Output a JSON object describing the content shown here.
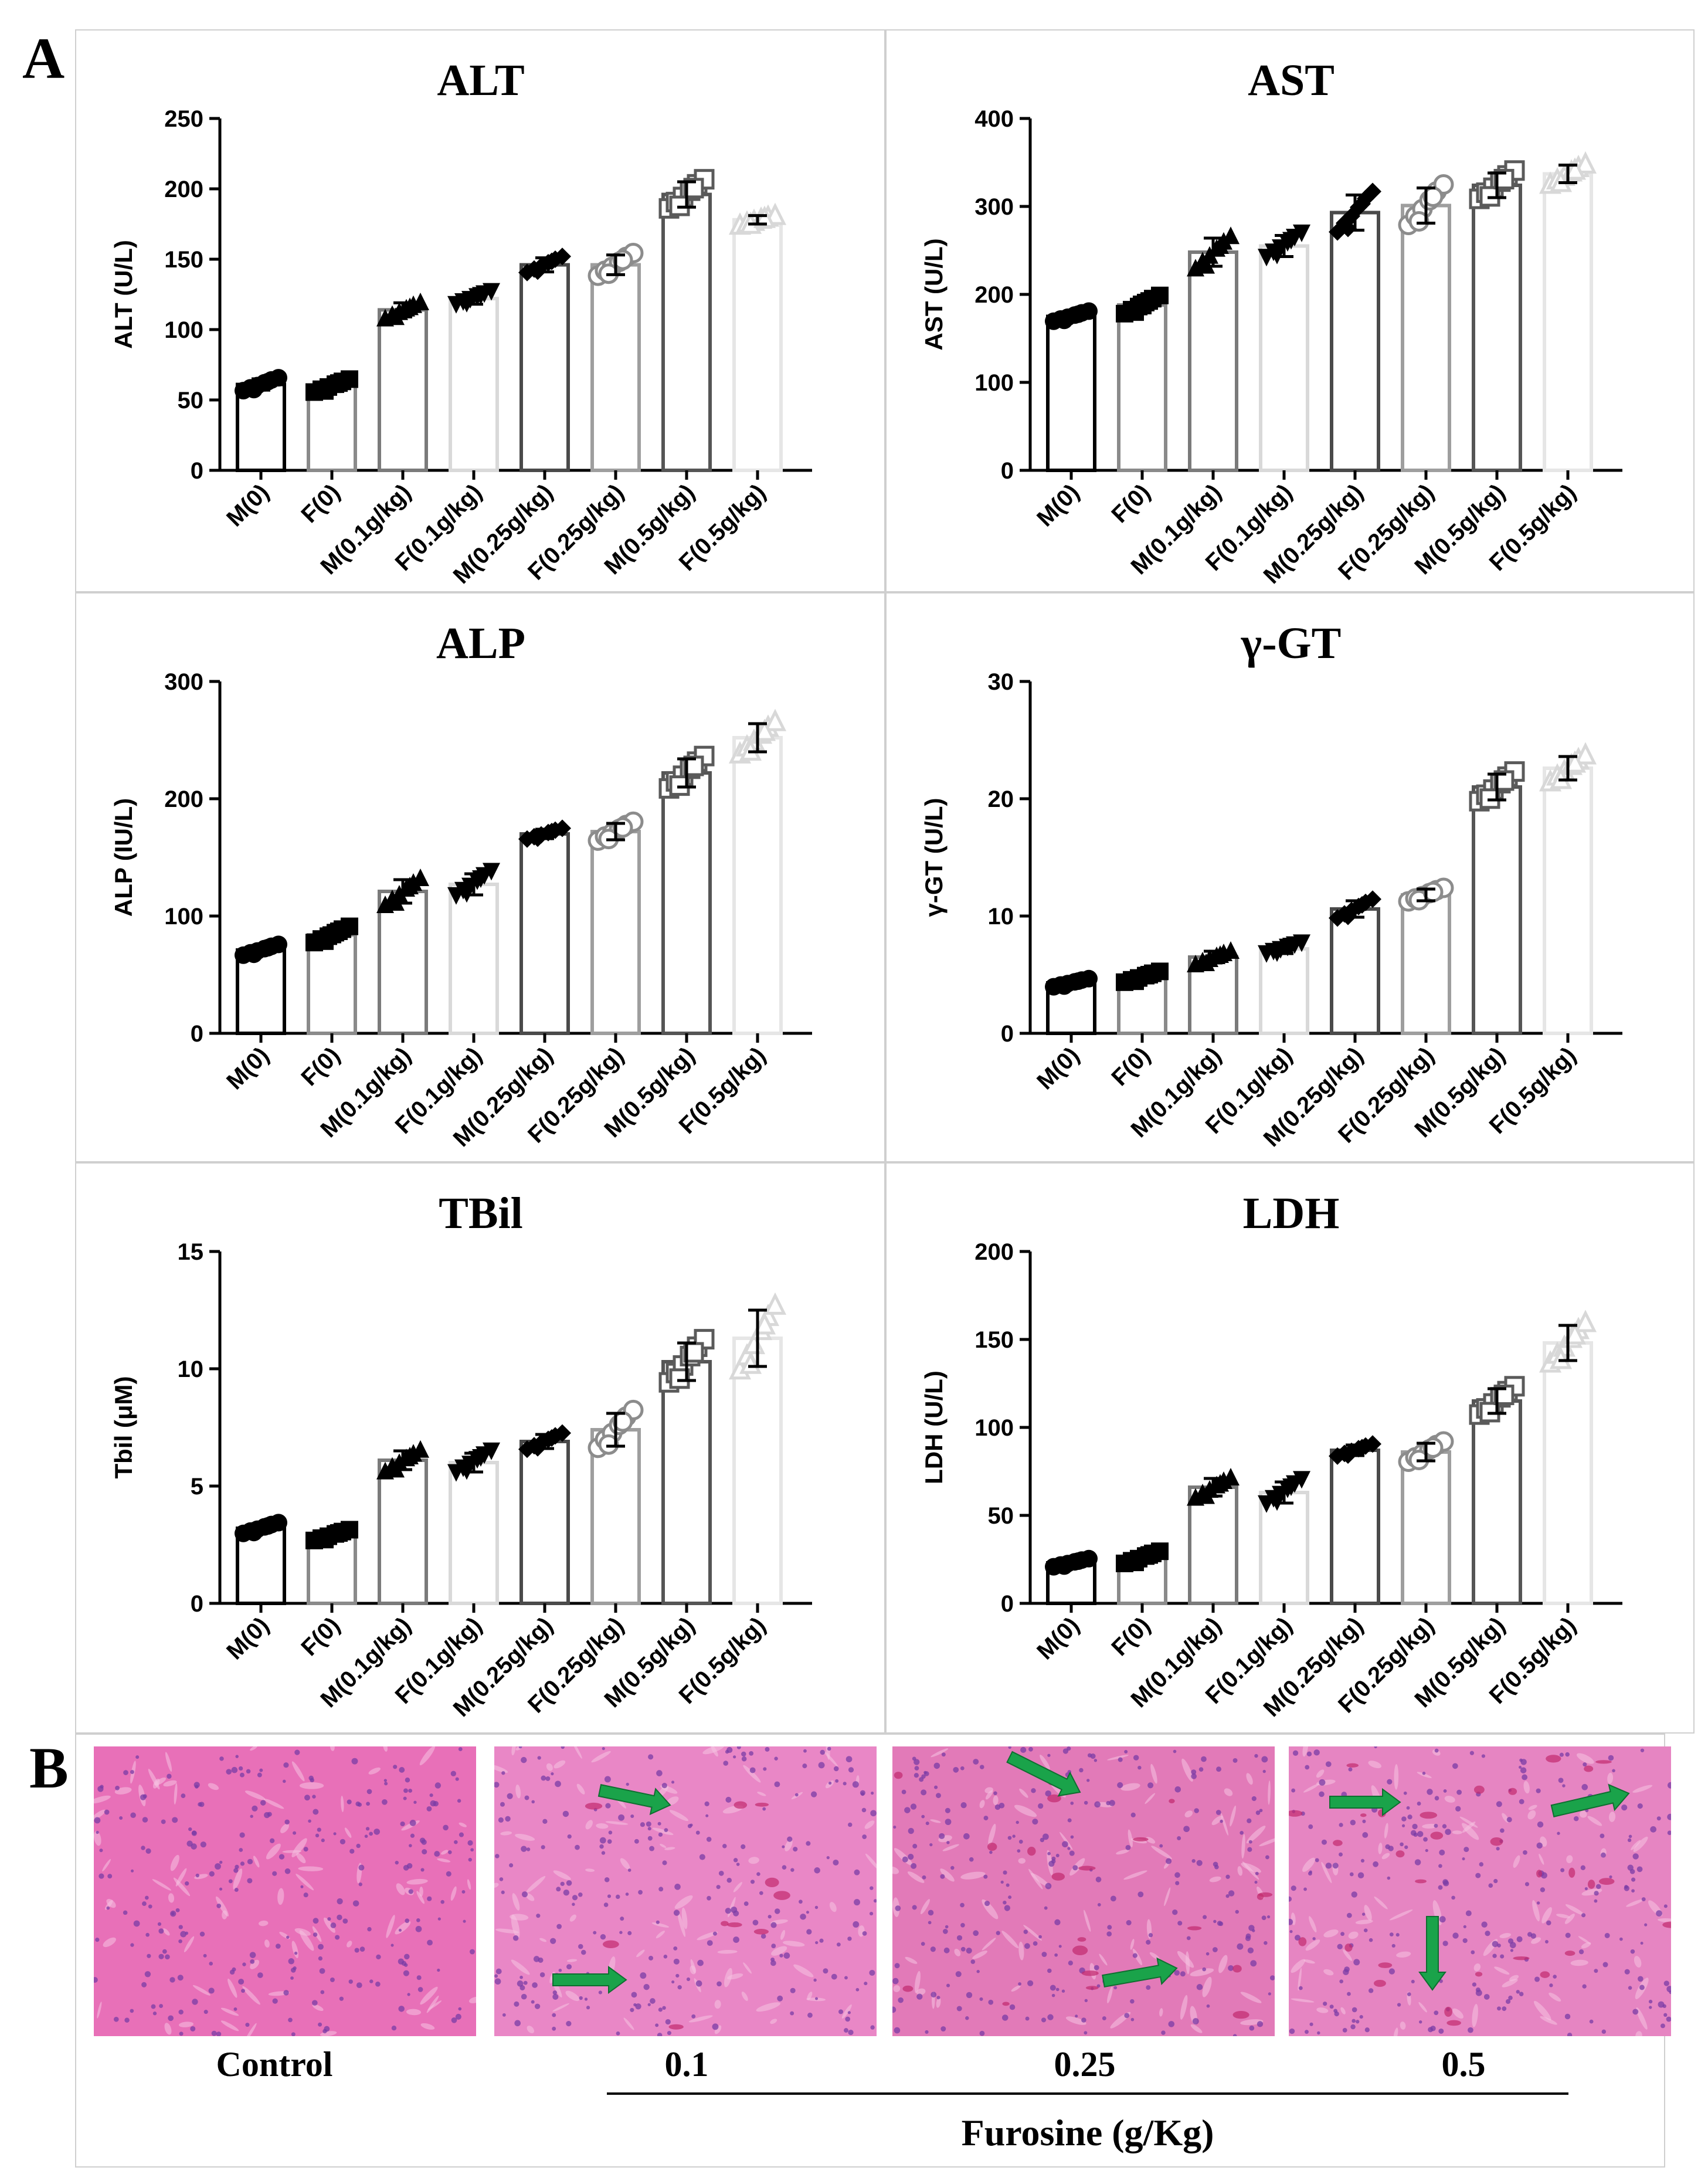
{
  "panel_labels": {
    "a": "A",
    "b": "B"
  },
  "categories": [
    "M(0)",
    "F(0)",
    "M(0.1g/kg)",
    "F(0.1g/kg)",
    "M(0.25g/kg)",
    "F(0.25g/kg)",
    "M(0.5g/kg)",
    "F(0.5g/kg)"
  ],
  "bar_colors": [
    "#000000",
    "#8a8a8a",
    "#7a7a7a",
    "#d9d9d9",
    "#4a4a4a",
    "#9e9e9e",
    "#555555",
    "#e6e6e6"
  ],
  "marker_shapes": [
    "circle",
    "square",
    "triangle-up",
    "triangle-down",
    "diamond",
    "circle-open",
    "square-open",
    "triangle-open"
  ],
  "chart_data": [
    {
      "id": "alt",
      "type": "bar",
      "title": "ALT",
      "ylabel": "ALT (U/L)",
      "ylim": [
        0,
        250
      ],
      "yticks": [
        "0",
        "50",
        "100",
        "150",
        "200",
        "250"
      ],
      "tickvals": [
        0,
        50,
        100,
        150,
        200,
        250
      ],
      "values": [
        61,
        60,
        114,
        122,
        146,
        146,
        196,
        178
      ],
      "errors": [
        4,
        4,
        5,
        4,
        5,
        7,
        9,
        3
      ]
    },
    {
      "id": "ast",
      "type": "bar",
      "title": "AST",
      "ylabel": "AST (U/L)",
      "ylim": [
        0,
        400
      ],
      "yticks": [
        "0",
        "100",
        "200",
        "300",
        "400"
      ],
      "tickvals": [
        0,
        100,
        200,
        300,
        400
      ],
      "values": [
        175,
        188,
        248,
        255,
        293,
        301,
        324,
        337
      ],
      "errors": [
        5,
        9,
        16,
        12,
        20,
        20,
        14,
        10
      ]
    },
    {
      "id": "alp",
      "type": "bar",
      "title": "ALP",
      "ylabel": "ALP (IU/L)",
      "ylim": [
        0,
        300
      ],
      "yticks": [
        "0",
        "100",
        "200",
        "300"
      ],
      "tickvals": [
        0,
        100,
        200,
        300
      ],
      "values": [
        71,
        84,
        121,
        127,
        170,
        172,
        222,
        252
      ],
      "errors": [
        4,
        6,
        10,
        9,
        4,
        7,
        12,
        12
      ]
    },
    {
      "id": "ggt",
      "type": "bar",
      "title": "γ-GT",
      "ylabel": "γ-GT (U/L)",
      "ylim": [
        0,
        30
      ],
      "yticks": [
        "0",
        "10",
        "20",
        "30"
      ],
      "tickvals": [
        0,
        10,
        20,
        30
      ],
      "values": [
        4.3,
        4.8,
        6.5,
        7.2,
        10.6,
        11.8,
        21.0,
        22.6
      ],
      "errors": [
        0.3,
        0.4,
        0.5,
        0.4,
        0.7,
        0.5,
        1.1,
        1.0
      ]
    },
    {
      "id": "tbil",
      "type": "bar",
      "title": "TBil",
      "ylabel": "Tbil (μM)",
      "ylim": [
        0,
        15
      ],
      "yticks": [
        "0",
        "5",
        "10",
        "15"
      ],
      "tickvals": [
        0,
        5,
        10,
        15
      ],
      "values": [
        3.2,
        2.9,
        6.1,
        6.0,
        6.9,
        7.4,
        10.3,
        11.3
      ],
      "errors": [
        0.2,
        0.2,
        0.4,
        0.4,
        0.3,
        0.7,
        0.8,
        1.2
      ]
    },
    {
      "id": "ldh",
      "type": "bar",
      "title": "LDH",
      "ylabel": "LDH (U/L)",
      "ylim": [
        0,
        200
      ],
      "yticks": [
        "0",
        "50",
        "100",
        "150",
        "200"
      ],
      "tickvals": [
        0,
        50,
        100,
        150,
        200
      ],
      "values": [
        23,
        26,
        66,
        63,
        87,
        86,
        115,
        148
      ],
      "errors": [
        2,
        3,
        5,
        6,
        3,
        5,
        7,
        10
      ]
    }
  ],
  "histology": {
    "labels": [
      "Control",
      "0.1",
      "0.25",
      "0.5"
    ],
    "arrow_color": "#1aa34a",
    "axis_label": "Furosine (g/Kg)"
  }
}
